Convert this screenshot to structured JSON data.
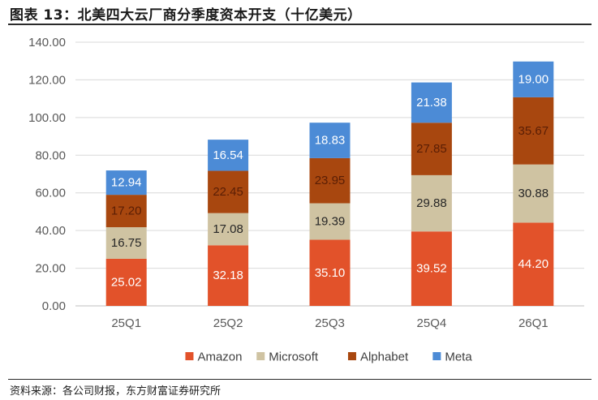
{
  "header": {
    "title": "图表 13：北美四大云厂商分季度资本开支（十亿美元）"
  },
  "footer": {
    "source": "资料来源：各公司财报，东方财富证券研究所"
  },
  "chart_data": {
    "type": "bar",
    "stacked": true,
    "categories": [
      "25Q1",
      "25Q2",
      "25Q3",
      "25Q4",
      "26Q1"
    ],
    "ylim": [
      0,
      140
    ],
    "yticks": [
      "0.00",
      "20.00",
      "40.00",
      "60.00",
      "80.00",
      "100.00",
      "120.00",
      "140.00"
    ],
    "grid": true,
    "legend_position": "bottom",
    "series": [
      {
        "name": "Amazon",
        "color": "#E2522A",
        "label_color": "#ffffff",
        "values": [
          25.02,
          32.18,
          35.1,
          39.52,
          44.2
        ],
        "labels": [
          "25.02",
          "32.18",
          "35.10",
          "39.52",
          "44.20"
        ]
      },
      {
        "name": "Microsoft",
        "color": "#CFC3A2",
        "label_color": "#262626",
        "values": [
          16.75,
          17.08,
          19.39,
          29.88,
          30.88
        ],
        "labels": [
          "16.75",
          "17.08",
          "19.39",
          "29.88",
          "30.88"
        ]
      },
      {
        "name": "Alphabet",
        "color": "#A8470F",
        "label_color": "#5a1e05",
        "values": [
          17.2,
          22.45,
          23.95,
          27.85,
          35.67
        ],
        "labels": [
          "17.20",
          "22.45",
          "23.95",
          "27.85",
          "35.67"
        ]
      },
      {
        "name": "Meta",
        "color": "#4C8BD6",
        "label_color": "#ffffff",
        "values": [
          12.94,
          16.54,
          18.83,
          21.38,
          19.0
        ],
        "labels": [
          "12.94",
          "16.54",
          "18.83",
          "21.38",
          "19.00"
        ]
      }
    ]
  }
}
